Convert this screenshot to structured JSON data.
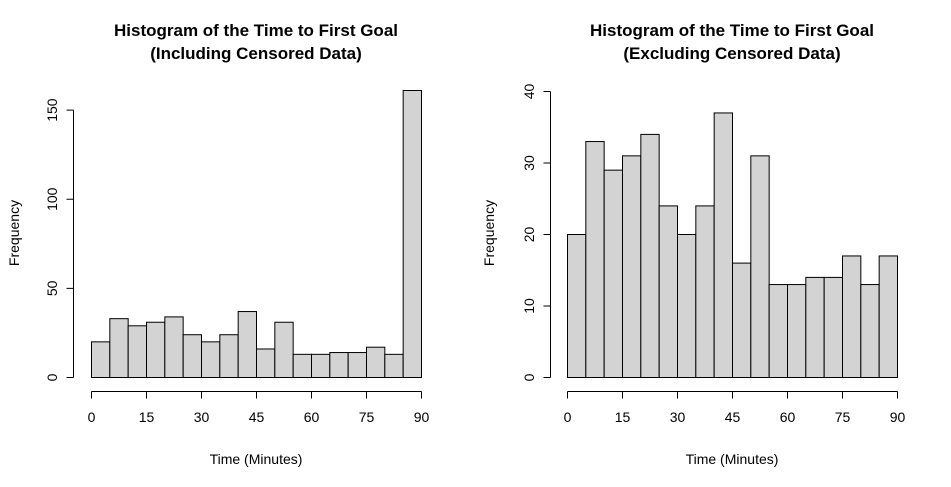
{
  "chart_data": [
    {
      "type": "bar",
      "title_lines": [
        "Histogram of the Time to First Goal",
        "(Including Censored Data)"
      ],
      "xlabel": "Time (Minutes)",
      "ylabel": "Frequency",
      "bin_edges": [
        0,
        5,
        10,
        15,
        20,
        25,
        30,
        35,
        40,
        45,
        50,
        55,
        60,
        65,
        70,
        75,
        80,
        85,
        90
      ],
      "values": [
        20,
        33,
        29,
        31,
        34,
        24,
        20,
        24,
        37,
        16,
        31,
        13,
        13,
        14,
        14,
        17,
        13,
        161
      ],
      "xlim": [
        0,
        90
      ],
      "ylim": [
        0,
        161
      ],
      "xticks": [
        0,
        15,
        30,
        45,
        60,
        75,
        90
      ],
      "xtick_labels": [
        "0",
        "15",
        "30",
        "45",
        "60",
        "75",
        "90"
      ],
      "yticks": [
        0,
        50,
        100,
        150
      ],
      "ytick_labels": [
        "0",
        "50",
        "100",
        "150"
      ],
      "grid": false,
      "colors": {
        "bar_fill": "#d3d3d3",
        "bar_stroke": "#000000"
      }
    },
    {
      "type": "bar",
      "title_lines": [
        "Histogram of the Time to First Goal",
        "(Excluding Censored Data)"
      ],
      "xlabel": "Time (Minutes)",
      "ylabel": "Frequency",
      "bin_edges": [
        0,
        5,
        10,
        15,
        20,
        25,
        30,
        35,
        40,
        45,
        50,
        55,
        60,
        65,
        70,
        75,
        80,
        85,
        90
      ],
      "values": [
        20,
        33,
        29,
        31,
        34,
        24,
        20,
        24,
        37,
        16,
        31,
        13,
        13,
        14,
        14,
        17,
        13,
        17
      ],
      "xlim": [
        0,
        90
      ],
      "ylim": [
        0,
        40
      ],
      "xticks": [
        0,
        15,
        30,
        45,
        60,
        75,
        90
      ],
      "xtick_labels": [
        "0",
        "15",
        "30",
        "45",
        "60",
        "75",
        "90"
      ],
      "yticks": [
        0,
        10,
        20,
        30,
        40
      ],
      "ytick_labels": [
        "0",
        "10",
        "20",
        "30",
        "40"
      ],
      "grid": false,
      "colors": {
        "bar_fill": "#d3d3d3",
        "bar_stroke": "#000000"
      }
    }
  ]
}
